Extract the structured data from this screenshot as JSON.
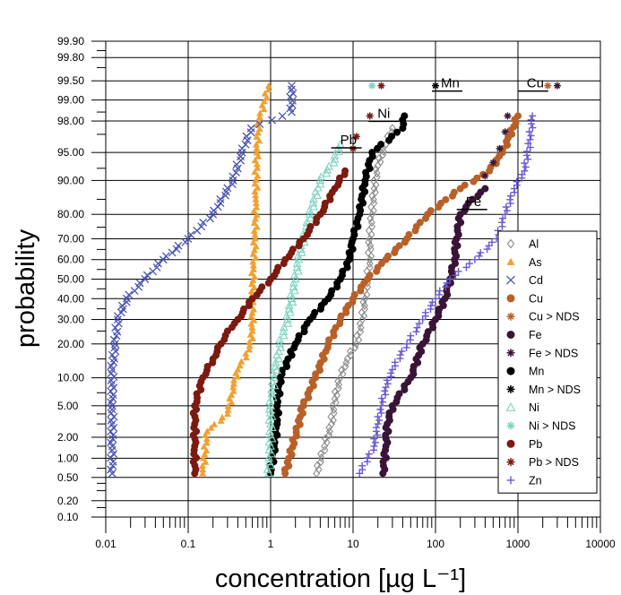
{
  "chart_data": {
    "type": "scatter",
    "title": "",
    "xlabel": "concentration  [µg L⁻¹]",
    "ylabel": "probability",
    "xscale": "log",
    "yscale": "probability",
    "xlim": [
      0.01,
      10000
    ],
    "ylim": [
      0.1,
      99.9
    ],
    "x_ticks": [
      "0.01",
      "0.1",
      "1",
      "10",
      "100",
      "1000",
      "10000"
    ],
    "y_ticks": [
      "0.10",
      "0.20",
      "0.50",
      "1.00",
      "2.00",
      "5.00",
      "10.00",
      "20.00",
      "30.00",
      "40.00",
      "50.00",
      "60.00",
      "70.00",
      "80.00",
      "90.00",
      "95.00",
      "98.00",
      "99.00",
      "99.50",
      "99.80",
      "99.90"
    ],
    "grid": true,
    "legend_position": "bottom-right",
    "series": [
      {
        "name": "Al",
        "marker": "diamond-open",
        "color": "#8c8c8c",
        "points": [
          [
            1.5,
            0.58
          ],
          [
            3.6,
            0.58
          ],
          [
            4.5,
            1.5
          ],
          [
            5.5,
            3
          ],
          [
            6,
            6
          ],
          [
            7,
            10
          ],
          [
            8.5,
            15
          ],
          [
            11,
            20
          ],
          [
            13,
            30
          ],
          [
            14,
            40
          ],
          [
            15,
            50
          ],
          [
            16,
            60
          ],
          [
            16,
            70
          ],
          [
            17,
            80
          ],
          [
            18,
            88
          ],
          [
            20,
            93
          ],
          [
            25,
            96
          ],
          [
            30,
            97.5
          ]
        ]
      },
      {
        "name": "As",
        "marker": "triangle",
        "color": "#f2a030",
        "points": [
          [
            0.15,
            0.58
          ],
          [
            0.17,
            2.4
          ],
          [
            0.3,
            4
          ],
          [
            0.35,
            8
          ],
          [
            0.4,
            12
          ],
          [
            0.55,
            18
          ],
          [
            0.6,
            25
          ],
          [
            0.6,
            40
          ],
          [
            0.62,
            55
          ],
          [
            0.65,
            70
          ],
          [
            0.66,
            85
          ],
          [
            0.68,
            95
          ],
          [
            0.72,
            98
          ],
          [
            0.95,
            99.4
          ]
        ]
      },
      {
        "name": "Cd",
        "marker": "cross",
        "color": "#4a54b0",
        "points": [
          [
            0.012,
            0.58
          ],
          [
            0.012,
            1.5
          ],
          [
            0.012,
            5
          ],
          [
            0.012,
            12
          ],
          [
            0.013,
            20
          ],
          [
            0.014,
            30
          ],
          [
            0.018,
            40
          ],
          [
            0.03,
            50
          ],
          [
            0.05,
            60
          ],
          [
            0.1,
            70
          ],
          [
            0.2,
            80
          ],
          [
            0.35,
            90
          ],
          [
            0.45,
            95
          ],
          [
            0.58,
            97.5
          ],
          [
            1.8,
            98.5
          ],
          [
            1.8,
            99.4
          ]
        ]
      },
      {
        "name": "Cu",
        "marker": "circle",
        "color": "#b86028",
        "points": [
          [
            1.5,
            0.58
          ],
          [
            2.5,
            5
          ],
          [
            3.5,
            10
          ],
          [
            5,
            20
          ],
          [
            7,
            30
          ],
          [
            10,
            40
          ],
          [
            15,
            50
          ],
          [
            25,
            60
          ],
          [
            45,
            70
          ],
          [
            80,
            80
          ],
          [
            200,
            88
          ],
          [
            450,
            92
          ],
          [
            650,
            95
          ],
          [
            1000,
            98.3
          ]
        ]
      },
      {
        "name": "Cu > NDS",
        "marker": "star",
        "color": "#b86028",
        "points": [
          [
            2300,
            99.4
          ]
        ]
      },
      {
        "name": "Fe",
        "marker": "circle",
        "color": "#3a1436",
        "points": [
          [
            23,
            0.58
          ],
          [
            25,
            1.5
          ],
          [
            26,
            3
          ],
          [
            30,
            5
          ],
          [
            50,
            10
          ],
          [
            70,
            20
          ],
          [
            100,
            30
          ],
          [
            130,
            40
          ],
          [
            150,
            50
          ],
          [
            170,
            60
          ],
          [
            180,
            70
          ],
          [
            200,
            80
          ],
          [
            280,
            85
          ],
          [
            400,
            88
          ]
        ]
      },
      {
        "name": "Fe > NDS",
        "marker": "star",
        "color": "#3a1436",
        "points": [
          [
            230,
            82
          ],
          [
            400,
            91
          ],
          [
            500,
            93.5
          ],
          [
            600,
            95.5
          ],
          [
            700,
            97.2
          ],
          [
            750,
            98.3
          ],
          [
            3000,
            99.4
          ]
        ]
      },
      {
        "name": "Mn",
        "marker": "circle",
        "color": "#000000",
        "points": [
          [
            1,
            0.58
          ],
          [
            1.1,
            1.5
          ],
          [
            1.2,
            3
          ],
          [
            1.2,
            5
          ],
          [
            1.3,
            10
          ],
          [
            2,
            20
          ],
          [
            3,
            30
          ],
          [
            5,
            40
          ],
          [
            7,
            50
          ],
          [
            9,
            60
          ],
          [
            10,
            70
          ],
          [
            12,
            80
          ],
          [
            14,
            90
          ],
          [
            17,
            95
          ],
          [
            40,
            97.5
          ],
          [
            42,
            98.3
          ]
        ]
      },
      {
        "name": "Mn > NDS",
        "marker": "star",
        "color": "#000000",
        "points": [
          [
            100,
            99.4
          ]
        ]
      },
      {
        "name": "Ni",
        "marker": "triangle-open",
        "color": "#7fd4c0",
        "points": [
          [
            0.95,
            0.58
          ],
          [
            1,
            1.5
          ],
          [
            1,
            3
          ],
          [
            1,
            5
          ],
          [
            1.1,
            10
          ],
          [
            1.3,
            20
          ],
          [
            1.6,
            30
          ],
          [
            1.8,
            40
          ],
          [
            2,
            50
          ],
          [
            2.2,
            60
          ],
          [
            2.5,
            70
          ],
          [
            3,
            80
          ],
          [
            4,
            90
          ],
          [
            6,
            94
          ],
          [
            7,
            96
          ]
        ]
      },
      {
        "name": "Ni > NDS",
        "marker": "star",
        "color": "#7fd4c0",
        "points": [
          [
            17,
            99.4
          ]
        ]
      },
      {
        "name": "Pb",
        "marker": "circle",
        "color": "#7a1a10",
        "points": [
          [
            0.12,
            0.58
          ],
          [
            0.12,
            1.5
          ],
          [
            0.12,
            3
          ],
          [
            0.12,
            5
          ],
          [
            0.15,
            10
          ],
          [
            0.2,
            15
          ],
          [
            0.25,
            20
          ],
          [
            0.3,
            25
          ],
          [
            0.4,
            30
          ],
          [
            0.6,
            40
          ],
          [
            1,
            50
          ],
          [
            1.5,
            60
          ],
          [
            2.5,
            70
          ],
          [
            4,
            80
          ],
          [
            6,
            88
          ],
          [
            8,
            92
          ]
        ]
      },
      {
        "name": "Pb > NDS",
        "marker": "star",
        "color": "#7a1a10",
        "points": [
          [
            10,
            95.5
          ],
          [
            11,
            96.8
          ],
          [
            16,
            98.3
          ],
          [
            22,
            99.4
          ]
        ]
      },
      {
        "name": "Zn",
        "marker": "plus",
        "color": "#6a5ad0",
        "points": [
          [
            12,
            0.58
          ],
          [
            18,
            1.5
          ],
          [
            20,
            3
          ],
          [
            22,
            5
          ],
          [
            25,
            8
          ],
          [
            30,
            12
          ],
          [
            45,
            20
          ],
          [
            70,
            30
          ],
          [
            100,
            40
          ],
          [
            150,
            50
          ],
          [
            300,
            60
          ],
          [
            550,
            70
          ],
          [
            700,
            80
          ],
          [
            900,
            88
          ],
          [
            1200,
            92
          ],
          [
            1400,
            96.5
          ],
          [
            1500,
            98.3
          ]
        ]
      }
    ],
    "annotations": [
      {
        "text": "Mn",
        "x": 100,
        "y": 99.4
      },
      {
        "text": "Cu",
        "x": 1100,
        "y": 99.4
      },
      {
        "text": "Ni",
        "x": 17,
        "y": 98.3
      },
      {
        "text": "Pb",
        "x": 6,
        "y": 96.2
      },
      {
        "text": "Fe",
        "x": 200,
        "y": 83.5
      }
    ]
  }
}
